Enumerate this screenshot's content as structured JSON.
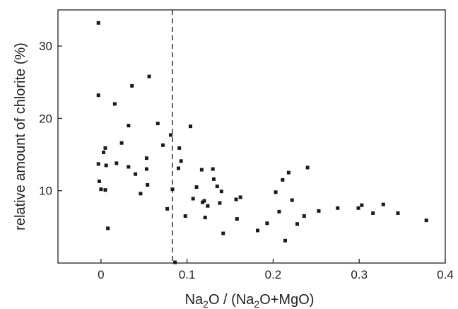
{
  "chart_data": {
    "type": "scatter",
    "title": "",
    "xlabel": {
      "pre": "Na",
      "sub1": "2",
      "mid": "O / (Na",
      "sub2": "2",
      "post": "O+MgO)"
    },
    "ylabel": "relative amount of chlorite (%)",
    "xlim": [
      -0.05,
      0.4
    ],
    "ylim": [
      0,
      35
    ],
    "xticks": [
      0,
      0.1,
      0.2,
      0.3,
      0.4
    ],
    "xtick_labels": [
      "0",
      "0.1",
      "0.2",
      "0.3",
      "0.4"
    ],
    "yticks": [
      10,
      20,
      30
    ],
    "ytick_labels": [
      "10",
      "20",
      "30"
    ],
    "grid": false,
    "legend": "none",
    "reference_line": {
      "x": 0.083,
      "style": "dashed",
      "orientation": "vertical"
    },
    "points": [
      [
        -0.003,
        33.2
      ],
      [
        -0.003,
        23.2
      ],
      [
        -0.003,
        13.7
      ],
      [
        -0.002,
        11.3
      ],
      [
        0.0,
        10.2
      ],
      [
        0.003,
        15.3
      ],
      [
        0.005,
        15.9
      ],
      [
        0.006,
        13.5
      ],
      [
        0.005,
        10.1
      ],
      [
        0.008,
        4.8
      ],
      [
        0.016,
        22.0
      ],
      [
        0.018,
        13.8
      ],
      [
        0.024,
        16.6
      ],
      [
        0.032,
        19.0
      ],
      [
        0.036,
        24.5
      ],
      [
        0.032,
        13.3
      ],
      [
        0.04,
        12.3
      ],
      [
        0.046,
        9.6
      ],
      [
        0.053,
        14.5
      ],
      [
        0.053,
        13.0
      ],
      [
        0.054,
        10.8
      ],
      [
        0.056,
        25.8
      ],
      [
        0.066,
        19.3
      ],
      [
        0.072,
        16.3
      ],
      [
        0.077,
        7.5
      ],
      [
        0.081,
        17.7
      ],
      [
        0.083,
        10.2
      ],
      [
        0.086,
        0.1
      ],
      [
        0.09,
        13.1
      ],
      [
        0.091,
        15.9
      ],
      [
        0.093,
        14.1
      ],
      [
        0.098,
        6.5
      ],
      [
        0.104,
        18.9
      ],
      [
        0.107,
        8.9
      ],
      [
        0.111,
        10.5
      ],
      [
        0.117,
        12.9
      ],
      [
        0.118,
        8.4
      ],
      [
        0.12,
        8.6
      ],
      [
        0.121,
        6.3
      ],
      [
        0.124,
        7.9
      ],
      [
        0.13,
        13.0
      ],
      [
        0.131,
        11.6
      ],
      [
        0.135,
        10.6
      ],
      [
        0.138,
        8.3
      ],
      [
        0.14,
        9.9
      ],
      [
        0.142,
        4.1
      ],
      [
        0.157,
        8.8
      ],
      [
        0.158,
        6.1
      ],
      [
        0.162,
        9.1
      ],
      [
        0.182,
        4.5
      ],
      [
        0.193,
        5.5
      ],
      [
        0.203,
        9.8
      ],
      [
        0.207,
        7.1
      ],
      [
        0.211,
        11.5
      ],
      [
        0.214,
        3.1
      ],
      [
        0.218,
        12.5
      ],
      [
        0.222,
        8.7
      ],
      [
        0.228,
        5.4
      ],
      [
        0.236,
        6.5
      ],
      [
        0.24,
        13.2
      ],
      [
        0.253,
        7.2
      ],
      [
        0.275,
        7.6
      ],
      [
        0.299,
        7.6
      ],
      [
        0.303,
        8.0
      ],
      [
        0.316,
        6.9
      ],
      [
        0.328,
        8.1
      ],
      [
        0.345,
        6.9
      ],
      [
        0.378,
        5.9
      ]
    ]
  }
}
